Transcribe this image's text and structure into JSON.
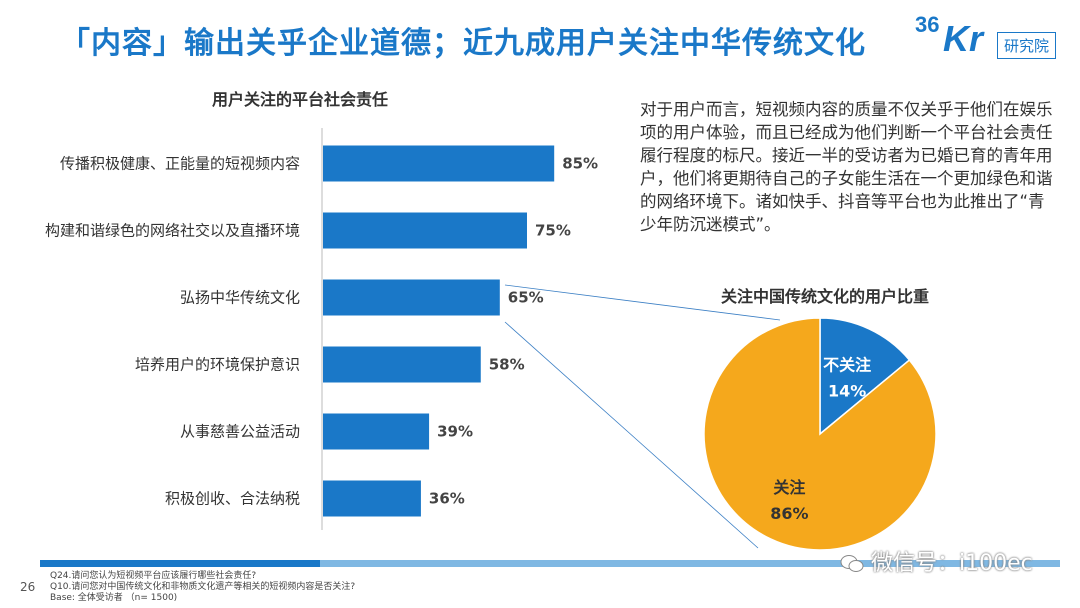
{
  "slide": {
    "title": "「内容」输出关乎企业道德；近九成用户关注中华传统文化",
    "page_number": "26"
  },
  "brand": {
    "logo_number": "36",
    "logo_letters": "Kr",
    "tag": "研究院"
  },
  "description": "对于用户而言，短视频内容的质量不仅关乎于他们在娱乐项的用户体验，而且已经成为他们判断一个平台社会责任履行程度的标尺。接近一半的受访者为已婚已育的青年用户，他们将更期待自己的子女能生活在一个更加绿色和谐的网络环境下。诸如快手、抖音等平台也为此推出了“青少年防沉迷模式”。",
  "footer": {
    "notes": [
      "Q24.请问您认为短视频平台应该履行哪些社会责任?",
      "Q10.请问您对中国传统文化和非物质文化遗产等相关的短视频内容是否关注?",
      "Base: 全体受访者 （n= 1500)"
    ],
    "watermark": "微信号：i100ec"
  },
  "colors": {
    "bar": "#1a78c8",
    "pie_focus": "#f5a81c",
    "pie_other": "#1a78c8",
    "title": "#1a78c8"
  },
  "chart_data": [
    {
      "type": "bar",
      "orientation": "horizontal",
      "title": "用户关注的平台社会责任",
      "categories": [
        "传播积极健康、正能量的短视频内容",
        "构建和谐绿色的网络社交以及直播环境",
        "弘扬中华传统文化",
        "培养用户的环境保护意识",
        "从事慈善公益活动",
        "积极创收、合法纳税"
      ],
      "values": [
        85,
        75,
        65,
        58,
        39,
        36
      ],
      "value_labels": [
        "85%",
        "75%",
        "65%",
        "58%",
        "39%",
        "36%"
      ],
      "xlim": [
        0,
        100
      ],
      "unit": "%"
    },
    {
      "type": "pie",
      "title": "关注中国传统文化的用户比重",
      "slices": [
        {
          "label": "不关注",
          "value": 14,
          "value_label": "14%"
        },
        {
          "label": "关注",
          "value": 86,
          "value_label": "86%"
        }
      ]
    }
  ]
}
